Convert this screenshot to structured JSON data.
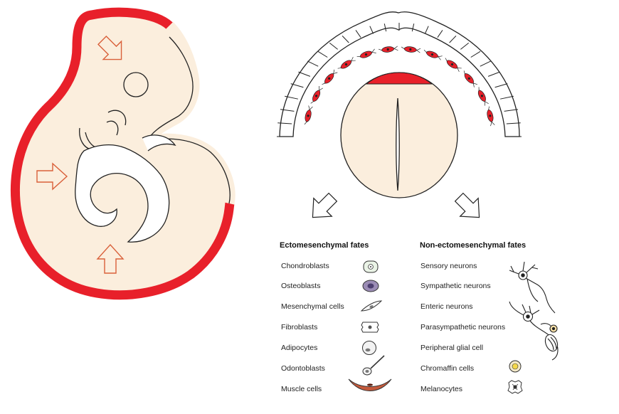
{
  "legend": {
    "ecto_heading": "Ectomesenchymal fates",
    "nonecto_heading": "Non-ectomesenchymal fates",
    "ecto_fates": [
      {
        "label": "Chondroblasts",
        "icon": "chondroblast-icon"
      },
      {
        "label": "Osteoblasts",
        "icon": "osteoblast-icon"
      },
      {
        "label": "Mesenchymal cells",
        "icon": "mesenchymal-cell-icon"
      },
      {
        "label": "Fibroblasts",
        "icon": "fibroblast-icon"
      },
      {
        "label": "Adipocytes",
        "icon": "adipocyte-icon"
      },
      {
        "label": "Odontoblasts",
        "icon": "odontoblast-icon"
      },
      {
        "label": "Muscle cells",
        "icon": "muscle-cell-icon"
      }
    ],
    "nonecto_fates": [
      {
        "label": "Sensory neurons"
      },
      {
        "label": "Sympathetic neurons"
      },
      {
        "label": "Enteric neurons"
      },
      {
        "label": "Parasympathetic neurons"
      },
      {
        "label": "Peripheral glial cell"
      },
      {
        "label": "Chromaffin cells",
        "icon": "chromaffin-cell-icon"
      },
      {
        "label": "Melanocytes",
        "icon": "melanocyte-icon"
      }
    ]
  },
  "colors": {
    "neural_crest_red": "#e8202a",
    "tissue_cream": "#fbeedd",
    "outline": "#222222",
    "arrow_outline": "#d9603a"
  }
}
